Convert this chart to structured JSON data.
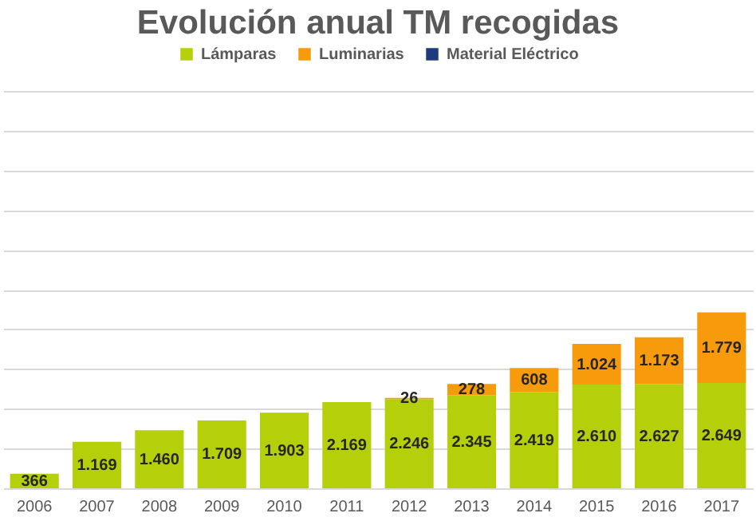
{
  "chart_data": {
    "type": "bar",
    "title": "Evolución anual TM recogidas",
    "stacked": true,
    "categories": [
      "2006",
      "2007",
      "2008",
      "2009",
      "2010",
      "2011",
      "2012",
      "2013",
      "2014",
      "2015",
      "2016",
      "2017"
    ],
    "series": [
      {
        "name": "Lámparas",
        "color": "#b5cf0a",
        "values": [
          366,
          1169,
          1460,
          1709,
          1903,
          2169,
          2246,
          2345,
          2419,
          2610,
          2627,
          2649
        ],
        "value_labels": [
          "366",
          "1.169",
          "1.460",
          "1.709",
          "1.903",
          "2.169",
          "2.246",
          "2.345",
          "2.419",
          "2.610",
          "2.627",
          "2.649"
        ]
      },
      {
        "name": "Luminarias",
        "color": "#f79a0c",
        "values": [
          null,
          null,
          null,
          null,
          null,
          null,
          26,
          278,
          608,
          1024,
          1173,
          1779
        ],
        "value_labels": [
          null,
          null,
          null,
          null,
          null,
          null,
          "26",
          "278",
          "608",
          "1.024",
          "1.173",
          "1.779"
        ]
      },
      {
        "name": "Material Eléctrico",
        "color": "#1f3b7e",
        "values": [
          null,
          null,
          null,
          null,
          null,
          null,
          null,
          null,
          null,
          null,
          null,
          null
        ]
      }
    ],
    "ylim": [
      0,
      10000
    ],
    "yticks": [
      {
        "value": 0,
        "label": null
      },
      {
        "value": 1000,
        "label": null
      },
      {
        "value": 2000,
        "label": null
      },
      {
        "value": 3000,
        "label": null
      },
      {
        "value": 4000,
        "label": null
      },
      {
        "value": 5000,
        "label": null
      },
      {
        "value": 6000,
        "label": null
      },
      {
        "value": 7000,
        "label": null
      },
      {
        "value": 8000,
        "label": null
      },
      {
        "value": 9000,
        "label": null
      },
      {
        "value": 10000,
        "label": null
      }
    ],
    "grid": "y",
    "legend": "top",
    "tick_labels": "x"
  }
}
